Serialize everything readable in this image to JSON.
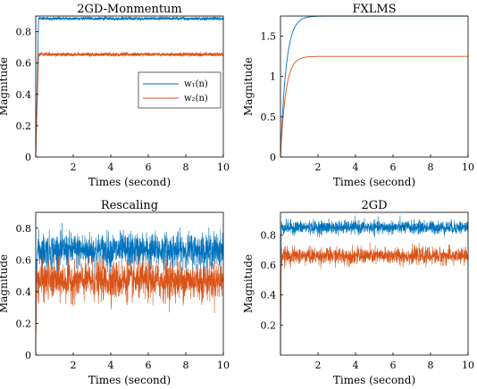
{
  "colors": {
    "w1": "#0072BD",
    "w2": "#D95319",
    "frame": "#000000",
    "background": "#ffffff"
  },
  "chart_data": [
    {
      "type": "line",
      "title": "2GD-Monmentum",
      "xlabel": "Times (second)",
      "ylabel": "Magnitude",
      "xlim": [
        0,
        10
      ],
      "ylim": [
        0,
        0.9
      ],
      "xticks": [
        "2",
        "4",
        "6",
        "8",
        "10"
      ],
      "yticks": [
        "0",
        "0.2",
        "0.4",
        "0.6",
        "0.8"
      ],
      "legend": {
        "position": "right",
        "entries": [
          "w₁(n)",
          "w₂(n)"
        ]
      },
      "series": [
        {
          "name": "w₁(n)",
          "color": "#0072BD",
          "shape": "step_noise",
          "start": 0,
          "mean": 0.884,
          "noise": 0.008,
          "rise_time": 0.15
        },
        {
          "name": "w₂(n)",
          "color": "#D95319",
          "shape": "step_noise",
          "start": 0,
          "mean": 0.655,
          "noise": 0.01,
          "rise_time": 0.15
        }
      ]
    },
    {
      "type": "line",
      "title": "FXLMS",
      "xlabel": "Times (second)",
      "ylabel": "Magnitude",
      "xlim": [
        0,
        10
      ],
      "ylim": [
        0,
        1.75
      ],
      "xticks": [
        "2",
        "4",
        "6",
        "8",
        "10"
      ],
      "yticks": [
        "0",
        "0.5",
        "1",
        "1.5"
      ],
      "series": [
        {
          "color": "#0072BD",
          "shape": "exp_rise",
          "start": 0,
          "final": 1.75,
          "tau": 0.3
        },
        {
          "color": "#D95319",
          "shape": "exp_rise",
          "start": 0,
          "final": 1.25,
          "tau": 0.28
        }
      ]
    },
    {
      "type": "line",
      "title": "Rescaling",
      "xlabel": "Times (second)",
      "ylabel": "Magnitude",
      "xlim": [
        0,
        10
      ],
      "ylim": [
        0,
        0.9
      ],
      "xticks": [
        "2",
        "4",
        "6",
        "8",
        "10"
      ],
      "yticks": [
        "0",
        "0.2",
        "0.4",
        "0.6",
        "0.8"
      ],
      "series": [
        {
          "color": "#0072BD",
          "shape": "noise_band",
          "start": 0,
          "mean": 0.66,
          "noise": 0.1,
          "rise_time": 0.05
        },
        {
          "color": "#D95319",
          "shape": "noise_band",
          "start": 0,
          "mean": 0.47,
          "noise": 0.11,
          "rise_time": 0.05
        }
      ]
    },
    {
      "type": "line",
      "title": "2GD",
      "xlabel": "Times (second)",
      "ylabel": "Magnitude",
      "xlim": [
        0,
        10
      ],
      "ylim": [
        0,
        0.95
      ],
      "xticks": [
        "2",
        "4",
        "6",
        "8",
        "10"
      ],
      "yticks": [
        "0.2",
        "0.4",
        "0.6",
        "0.8"
      ],
      "series": [
        {
          "color": "#0072BD",
          "shape": "noise_band",
          "start": 0,
          "mean": 0.85,
          "noise": 0.04,
          "rise_time": 0.05
        },
        {
          "color": "#D95319",
          "shape": "noise_band",
          "start": 0,
          "mean": 0.66,
          "noise": 0.05,
          "rise_time": 0.05
        }
      ]
    }
  ]
}
